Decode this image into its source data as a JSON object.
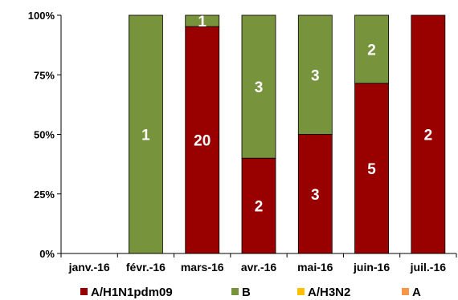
{
  "chart_data": {
    "type": "bar",
    "stacked": "percent",
    "categories": [
      "janv.-16",
      "févr.-16",
      "mars-16",
      "avr.-16",
      "mai-16",
      "juin-16",
      "juil.-16"
    ],
    "series": [
      {
        "name": "A/H1N1pdm09",
        "color": "#990000",
        "values": [
          0,
          0,
          20,
          2,
          3,
          5,
          2
        ]
      },
      {
        "name": "B",
        "color": "#77933C",
        "values": [
          0,
          1,
          1,
          3,
          3,
          2,
          0
        ]
      },
      {
        "name": "A/H3N2",
        "color": "#FFC000",
        "values": [
          0,
          0,
          0,
          0,
          0,
          0,
          0
        ]
      },
      {
        "name": "A",
        "color": "#F79646",
        "values": [
          0,
          0,
          0,
          0,
          0,
          0,
          0
        ]
      }
    ],
    "yticks": [
      "0%",
      "25%",
      "50%",
      "75%",
      "100%"
    ],
    "ylim": [
      0,
      100
    ],
    "grid": false,
    "legend_position": "bottom"
  }
}
